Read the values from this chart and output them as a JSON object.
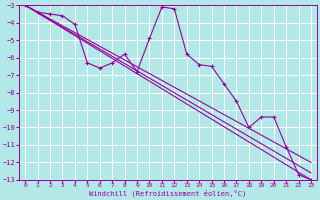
{
  "background_color": "#b2e8e8",
  "grid_color": "#c8e8e8",
  "line_color": "#990099",
  "marker": "+",
  "xlabel": "Windchill (Refroidissement éolien,°C)",
  "xlim": [
    -0.5,
    23.5
  ],
  "ylim": [
    -13,
    -3
  ],
  "yticks": [
    -13,
    -12,
    -11,
    -10,
    -9,
    -8,
    -7,
    -6,
    -5,
    -4,
    -3
  ],
  "xticks": [
    0,
    1,
    2,
    3,
    4,
    5,
    6,
    7,
    8,
    9,
    10,
    11,
    12,
    13,
    14,
    15,
    16,
    17,
    18,
    19,
    20,
    21,
    22,
    23
  ],
  "series": [
    {
      "x": [
        0,
        1,
        2,
        3,
        4,
        5,
        6,
        7,
        8,
        9,
        10,
        11,
        12,
        13,
        14,
        15,
        16,
        17,
        18,
        19,
        20,
        21,
        22,
        23
      ],
      "y": [
        -3,
        -3.4,
        -3.5,
        -3.6,
        -4.1,
        -6.3,
        -6.6,
        -6.3,
        -5.8,
        -6.8,
        -4.9,
        -3.1,
        -3.2,
        -5.8,
        -6.4,
        -6.5,
        -7.5,
        -8.5,
        -10.0,
        -9.4,
        -9.4,
        -11.1,
        -12.7,
        -13.0
      ],
      "has_markers": true
    },
    {
      "x": [
        0,
        23
      ],
      "y": [
        -3,
        -13.0
      ],
      "has_markers": false
    },
    {
      "x": [
        0,
        23
      ],
      "y": [
        -3,
        -12.6
      ],
      "has_markers": false
    },
    {
      "x": [
        0,
        23
      ],
      "y": [
        -3,
        -12.0
      ],
      "has_markers": false
    }
  ]
}
